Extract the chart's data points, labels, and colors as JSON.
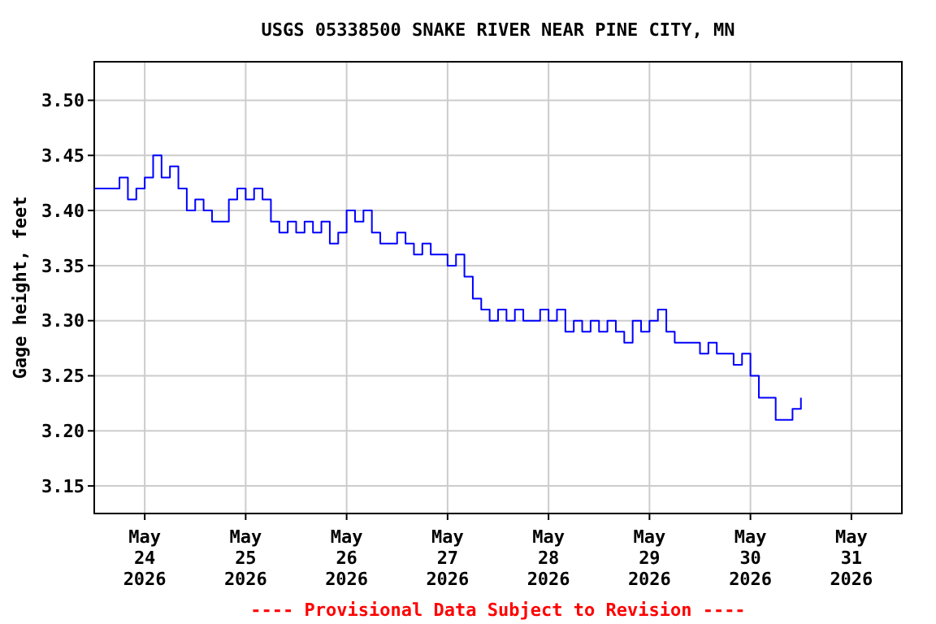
{
  "chart_data": {
    "type": "step",
    "title": "USGS 05338500 SNAKE RIVER NEAR PINE CITY, MN",
    "ylabel": "Gage height, feet",
    "annotations": [
      "---- Provisional Data Subject to Revision ----"
    ],
    "x": [
      "2026-05-23T12:00",
      "2026-05-23T14:00",
      "2026-05-23T16:00",
      "2026-05-23T18:00",
      "2026-05-23T20:00",
      "2026-05-23T22:00",
      "2026-05-24T00:00",
      "2026-05-24T02:00",
      "2026-05-24T04:00",
      "2026-05-24T06:00",
      "2026-05-24T08:00",
      "2026-05-24T10:00",
      "2026-05-24T12:00",
      "2026-05-24T14:00",
      "2026-05-24T16:00",
      "2026-05-24T18:00",
      "2026-05-24T20:00",
      "2026-05-24T22:00",
      "2026-05-25T00:00",
      "2026-05-25T02:00",
      "2026-05-25T04:00",
      "2026-05-25T06:00",
      "2026-05-25T08:00",
      "2026-05-25T10:00",
      "2026-05-25T12:00",
      "2026-05-25T14:00",
      "2026-05-25T16:00",
      "2026-05-25T18:00",
      "2026-05-25T20:00",
      "2026-05-25T22:00",
      "2026-05-26T00:00",
      "2026-05-26T02:00",
      "2026-05-26T04:00",
      "2026-05-26T06:00",
      "2026-05-26T08:00",
      "2026-05-26T10:00",
      "2026-05-26T12:00",
      "2026-05-26T14:00",
      "2026-05-26T16:00",
      "2026-05-26T18:00",
      "2026-05-26T20:00",
      "2026-05-26T22:00",
      "2026-05-27T00:00",
      "2026-05-27T02:00",
      "2026-05-27T04:00",
      "2026-05-27T06:00",
      "2026-05-27T08:00",
      "2026-05-27T10:00",
      "2026-05-27T12:00",
      "2026-05-27T14:00",
      "2026-05-27T16:00",
      "2026-05-27T18:00",
      "2026-05-27T20:00",
      "2026-05-27T22:00",
      "2026-05-28T00:00",
      "2026-05-28T02:00",
      "2026-05-28T04:00",
      "2026-05-28T06:00",
      "2026-05-28T08:00",
      "2026-05-28T10:00",
      "2026-05-28T12:00",
      "2026-05-28T14:00",
      "2026-05-28T16:00",
      "2026-05-28T18:00",
      "2026-05-28T20:00",
      "2026-05-28T22:00",
      "2026-05-29T00:00",
      "2026-05-29T02:00",
      "2026-05-29T04:00",
      "2026-05-29T06:00",
      "2026-05-29T08:00",
      "2026-05-29T10:00",
      "2026-05-29T12:00",
      "2026-05-29T14:00",
      "2026-05-29T16:00",
      "2026-05-29T18:00",
      "2026-05-29T20:00",
      "2026-05-29T22:00",
      "2026-05-30T00:00",
      "2026-05-30T02:00",
      "2026-05-30T04:00",
      "2026-05-30T06:00",
      "2026-05-30T08:00",
      "2026-05-30T10:00",
      "2026-05-30T12:00"
    ],
    "series": [
      {
        "color": "#0000ff",
        "values": [
          3.42,
          3.42,
          3.42,
          3.43,
          3.41,
          3.42,
          3.43,
          3.45,
          3.43,
          3.44,
          3.42,
          3.4,
          3.41,
          3.4,
          3.39,
          3.39,
          3.41,
          3.42,
          3.41,
          3.42,
          3.41,
          3.39,
          3.38,
          3.39,
          3.38,
          3.39,
          3.38,
          3.39,
          3.37,
          3.38,
          3.4,
          3.39,
          3.4,
          3.38,
          3.37,
          3.37,
          3.38,
          3.37,
          3.36,
          3.37,
          3.36,
          3.36,
          3.35,
          3.36,
          3.34,
          3.32,
          3.31,
          3.3,
          3.31,
          3.3,
          3.31,
          3.3,
          3.3,
          3.31,
          3.3,
          3.31,
          3.29,
          3.3,
          3.29,
          3.3,
          3.29,
          3.3,
          3.29,
          3.28,
          3.3,
          3.29,
          3.3,
          3.31,
          3.29,
          3.28,
          3.28,
          3.28,
          3.27,
          3.28,
          3.27,
          3.27,
          3.26,
          3.27,
          3.25,
          3.23,
          3.23,
          3.21,
          3.21,
          3.22,
          3.23
        ]
      }
    ],
    "xlim": [
      "2026-05-23T12:00",
      "2026-05-31T12:00"
    ],
    "xticks": [
      {
        "value": "2026-05-24",
        "label": "May\n24\n2026"
      },
      {
        "value": "2026-05-25",
        "label": "May\n25\n2026"
      },
      {
        "value": "2026-05-26",
        "label": "May\n26\n2026"
      },
      {
        "value": "2026-05-27",
        "label": "May\n27\n2026"
      },
      {
        "value": "2026-05-28",
        "label": "May\n28\n2026"
      },
      {
        "value": "2026-05-29",
        "label": "May\n29\n2026"
      },
      {
        "value": "2026-05-30",
        "label": "May\n30\n2026"
      },
      {
        "value": "2026-05-31",
        "label": "May\n31\n2026"
      }
    ],
    "ylim": [
      3.125,
      3.535
    ],
    "yticks": [
      {
        "value": 3.15,
        "label": "3.15"
      },
      {
        "value": 3.2,
        "label": "3.20"
      },
      {
        "value": 3.25,
        "label": "3.25"
      },
      {
        "value": 3.3,
        "label": "3.30"
      },
      {
        "value": 3.35,
        "label": "3.35"
      },
      {
        "value": 3.4,
        "label": "3.40"
      },
      {
        "value": 3.45,
        "label": "3.45"
      },
      {
        "value": 3.5,
        "label": "3.50"
      }
    ],
    "grid": true
  }
}
